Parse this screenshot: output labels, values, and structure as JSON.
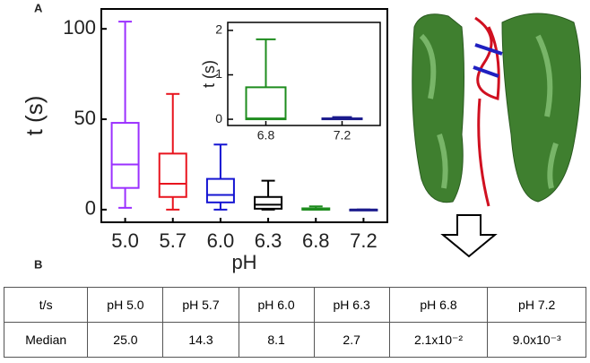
{
  "panel_labels": [
    "A",
    "B"
  ],
  "chart_data": [
    {
      "type": "box",
      "ylabel": "t (s)",
      "xlabel": "pH",
      "categories": [
        "5.0",
        "5.7",
        "6.0",
        "6.3",
        "6.8",
        "7.2"
      ],
      "boxes": [
        {
          "color": "#9b30ff",
          "min": 1,
          "q1": 12,
          "median": 25,
          "q3": 48,
          "max": 104
        },
        {
          "color": "#e8141e",
          "min": 0,
          "q1": 7,
          "median": 14.3,
          "q3": 31,
          "max": 64
        },
        {
          "color": "#1414d2",
          "min": 0,
          "q1": 4,
          "median": 8.1,
          "q3": 17,
          "max": 36
        },
        {
          "color": "#000000",
          "min": 0,
          "q1": 0.5,
          "median": 2.7,
          "q3": 7,
          "max": 16
        },
        {
          "color": "#1e8c1e",
          "min": 0,
          "q1": 0,
          "median": 0.02,
          "q3": 0.7,
          "max": 1.8
        },
        {
          "color": "#1a1a8c",
          "min": 0,
          "q1": 0.005,
          "median": 0.009,
          "q3": 0.02,
          "max": 0.05
        }
      ],
      "ylim": [
        -7,
        111
      ],
      "yticks": [
        0,
        50,
        100
      ]
    },
    {
      "type": "box",
      "ylabel": "t (s)",
      "categories": [
        "6.8",
        "7.2"
      ],
      "boxes": [
        {
          "color": "#1e8c1e",
          "min": 0,
          "q1": 0,
          "median": 0.02,
          "q3": 0.72,
          "max": 1.8
        },
        {
          "color": "#1a1a8c",
          "min": 0,
          "q1": 0.005,
          "median": 0.009,
          "q3": 0.02,
          "max": 0.05
        }
      ],
      "ylim": [
        -0.14,
        2.18
      ],
      "yticks": [
        0,
        1,
        2
      ]
    }
  ],
  "table": {
    "header": [
      "t/s",
      "pH 5.0",
      "pH 5.7",
      "pH 6.0",
      "pH 6.3",
      "pH 6.8",
      "pH 7.2"
    ],
    "rows": [
      [
        "Median",
        "25.0",
        "14.3",
        "8.1",
        "2.7",
        "2.1x10⁻²",
        "9.0x10⁻³"
      ]
    ]
  }
}
